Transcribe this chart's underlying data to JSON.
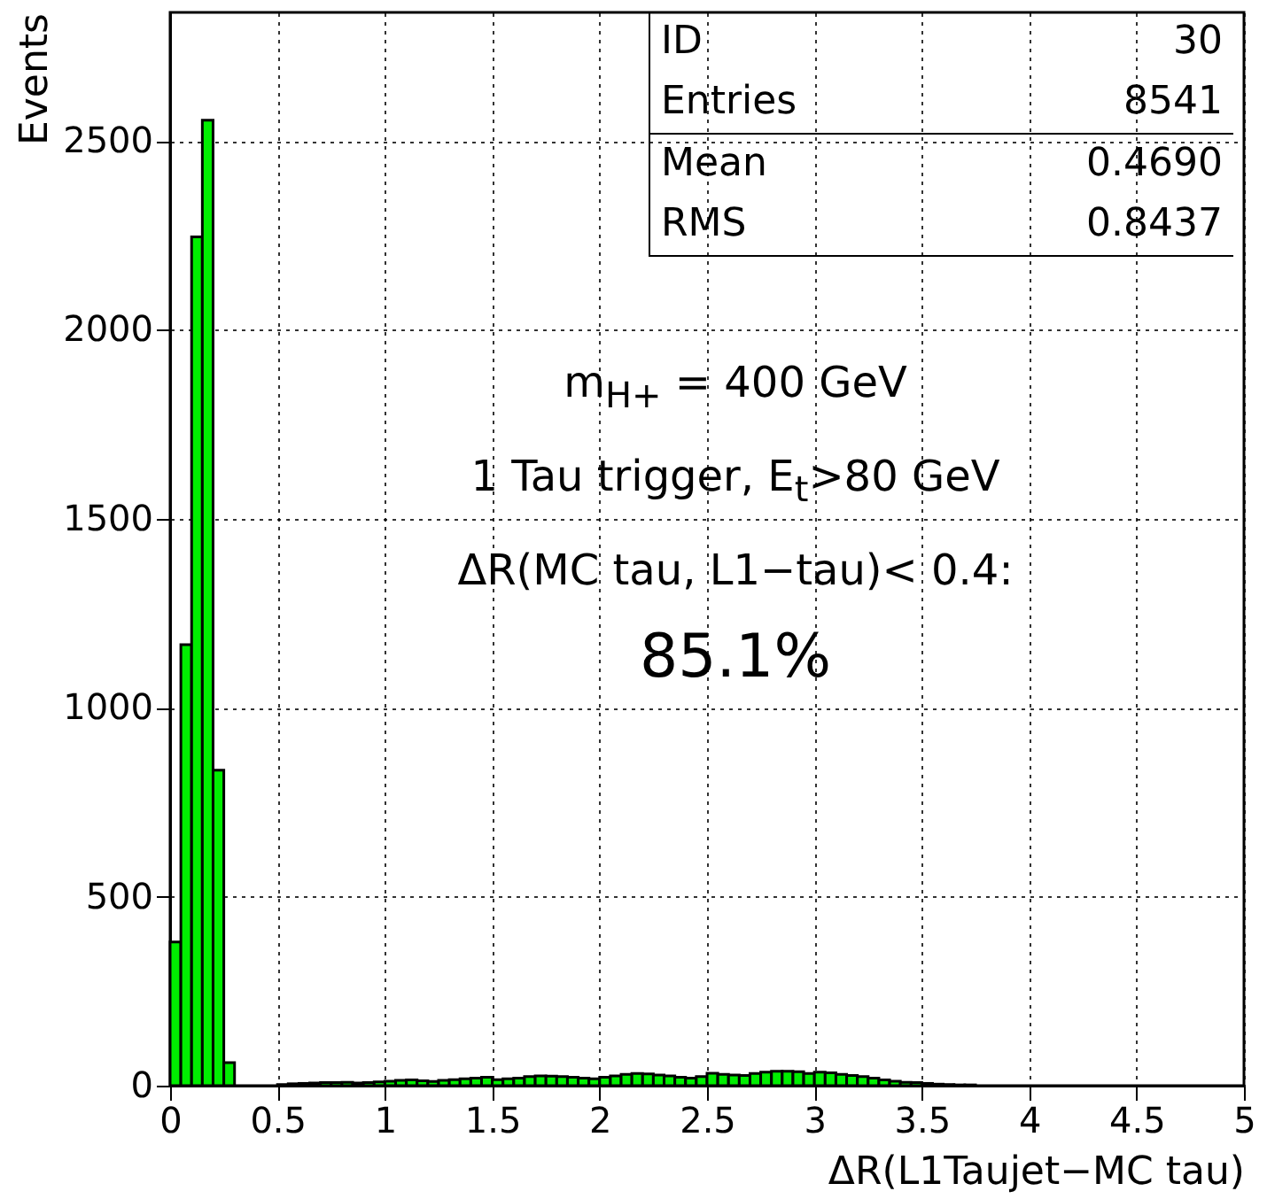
{
  "chart_data": {
    "type": "histogram",
    "xlabel": "ΔR(L1Taujet−MC tau)",
    "ylabel": "Events",
    "bins": [
      0,
      0.05,
      0.1,
      0.15,
      0.2,
      0.25,
      0.3,
      0.35,
      0.4,
      0.45,
      0.5,
      0.55,
      0.6,
      0.65,
      0.7,
      0.75,
      0.8,
      0.85,
      0.9,
      0.95,
      1,
      1.05,
      1.1,
      1.15,
      1.2,
      1.25,
      1.3,
      1.35,
      1.4,
      1.45,
      1.5,
      1.55,
      1.6,
      1.65,
      1.7,
      1.75,
      1.8,
      1.85,
      1.9,
      1.95,
      2,
      2.05,
      2.1,
      2.15,
      2.2,
      2.25,
      2.3,
      2.35,
      2.4,
      2.45,
      2.5,
      2.55,
      2.6,
      2.65,
      2.7,
      2.75,
      2.8,
      2.85,
      2.9,
      2.95,
      3,
      3.05,
      3.1,
      3.15,
      3.2,
      3.25,
      3.3,
      3.35,
      3.4,
      3.45,
      3.5,
      3.55,
      3.6,
      3.65,
      3.7,
      3.75,
      3.8,
      3.85,
      3.9,
      3.95,
      4,
      4.05,
      4.1,
      4.15,
      4.2,
      4.25,
      4.3,
      4.35,
      4.4,
      4.45,
      4.5,
      4.55,
      4.6,
      4.65,
      4.7,
      4.75,
      4.8,
      4.85,
      4.9,
      4.95,
      5
    ],
    "values": [
      380,
      1167,
      2246,
      2555,
      835,
      61,
      0,
      0,
      0,
      0,
      3,
      5,
      6,
      7,
      8,
      8,
      9,
      7,
      8,
      10,
      12,
      14,
      15,
      13,
      11,
      14,
      16,
      18,
      20,
      22,
      16,
      18,
      20,
      24,
      26,
      25,
      24,
      22,
      20,
      18,
      22,
      26,
      30,
      32,
      31,
      28,
      26,
      22,
      20,
      24,
      33,
      30,
      28,
      27,
      32,
      36,
      38,
      38,
      37,
      32,
      36,
      34,
      30,
      27,
      24,
      20,
      15,
      12,
      9,
      8,
      6,
      4,
      3,
      2,
      2,
      0,
      0,
      0,
      0,
      0,
      0,
      0,
      0,
      0,
      0,
      0,
      0,
      0,
      0,
      0,
      0,
      0,
      0,
      0,
      0,
      0,
      0,
      0,
      0,
      0
    ],
    "color": "#00ee00",
    "xlim": [
      0,
      5
    ],
    "xticks": [
      0,
      0.5,
      1,
      1.5,
      2,
      2.5,
      3,
      3.5,
      4,
      4.5,
      5
    ],
    "ylim": [
      0,
      2840
    ],
    "yticks": [
      0,
      500,
      1000,
      1500,
      2000,
      2500
    ],
    "grid": true,
    "annotations": [
      "ID",
      "30",
      "Entries",
      "8541",
      "Mean",
      "0.4690",
      "RMS",
      "0.8437",
      "m$_{H+}$ = 400 GeV",
      "1 Tau trigger, E$_{t}$>80 GeV",
      "ΔR(MC tau, L1−tau)< 0.4:",
      "85.1%"
    ]
  }
}
